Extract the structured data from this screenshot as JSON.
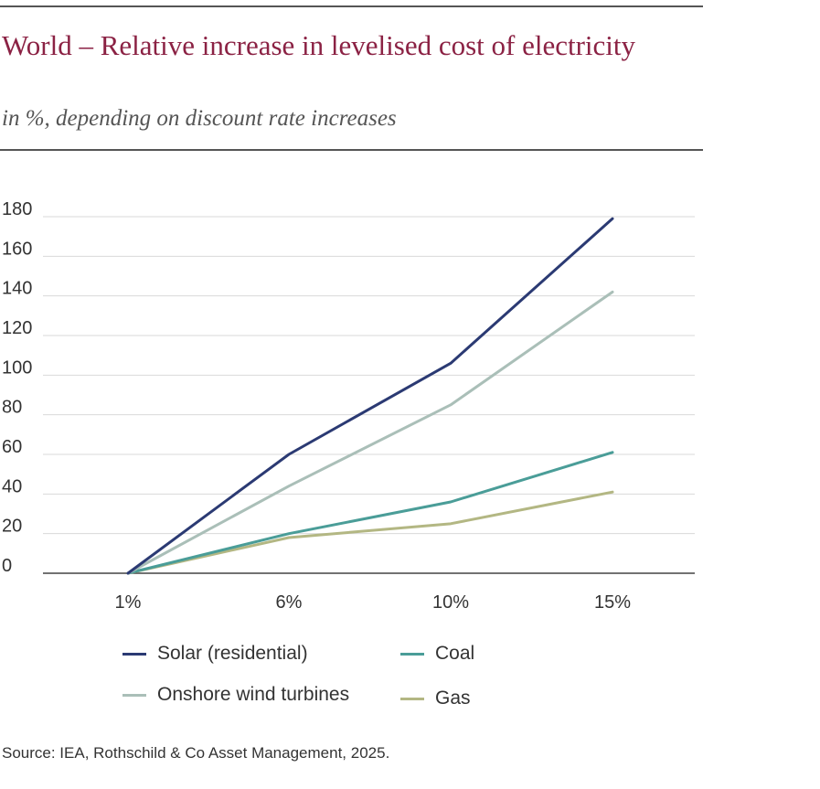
{
  "header": {
    "title": "World – Relative increase in levelised cost of electricity",
    "subtitle": "in %, depending on discount rate increases"
  },
  "chart_data": {
    "type": "line",
    "title": "World – Relative increase in levelised cost of electricity",
    "subtitle": "in %, depending on discount rate increases",
    "categories": [
      "1%",
      "6%",
      "10%",
      "15%"
    ],
    "ylim": [
      0,
      180
    ],
    "yticks": [
      0,
      20,
      40,
      60,
      80,
      100,
      120,
      140,
      160,
      180
    ],
    "grid": true,
    "legend_position": "bottom",
    "series": [
      {
        "name": "Solar (residential)",
        "color": "#2b3a73",
        "values": [
          0,
          60,
          106,
          179
        ]
      },
      {
        "name": "Onshore wind turbines",
        "color": "#aabfb8",
        "values": [
          0,
          44,
          85,
          142
        ]
      },
      {
        "name": "Coal",
        "color": "#4a9d98",
        "values": [
          0,
          20,
          36,
          61
        ]
      },
      {
        "name": "Gas",
        "color": "#b3b783",
        "values": [
          0,
          18,
          25,
          41
        ]
      }
    ]
  },
  "footer": {
    "source": "Source: IEA, Rothschild & Co Asset Management, 2025."
  }
}
